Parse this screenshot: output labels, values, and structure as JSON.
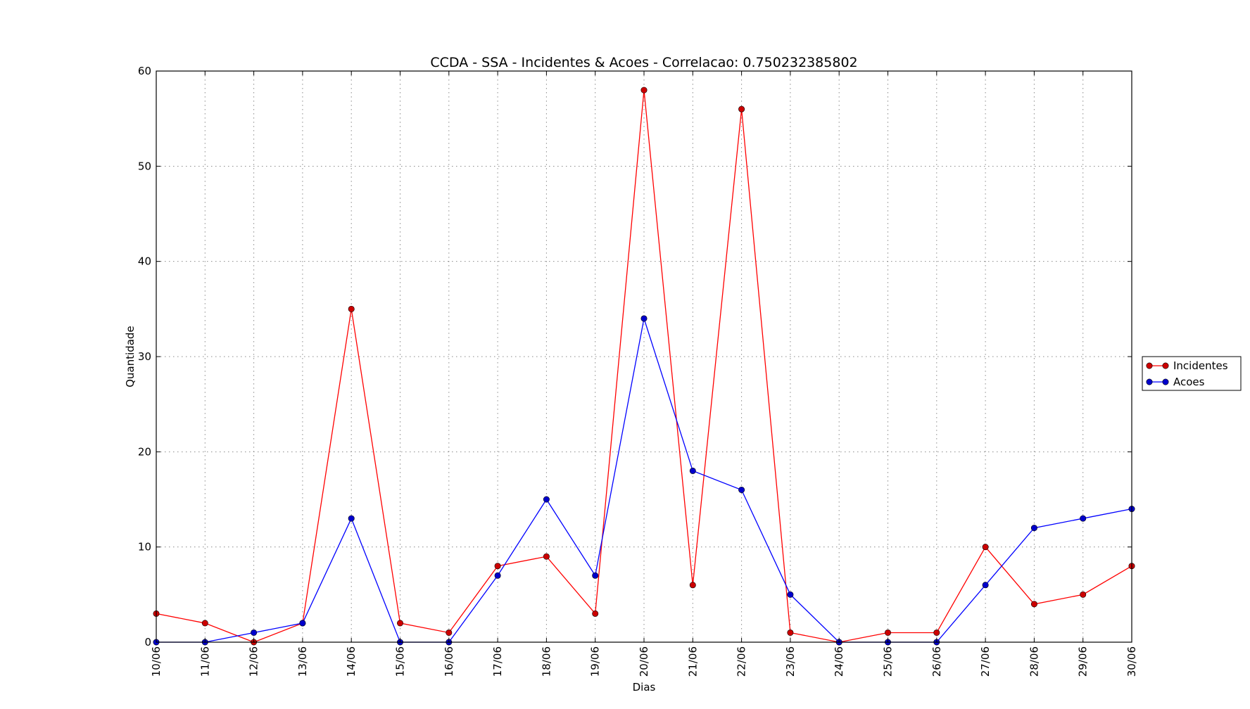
{
  "chart_data": {
    "type": "line",
    "title": "CCDA - SSA - Incidentes & Acoes - Correlacao: 0.750232385802",
    "xlabel": "Dias",
    "ylabel": "Quantidade",
    "categories": [
      "10/06",
      "11/06",
      "12/06",
      "13/06",
      "14/06",
      "15/06",
      "16/06",
      "17/06",
      "18/06",
      "19/06",
      "20/06",
      "21/06",
      "22/06",
      "23/06",
      "24/06",
      "25/06",
      "26/06",
      "27/06",
      "28/06",
      "29/06",
      "30/06"
    ],
    "ylim": [
      0,
      60
    ],
    "yticks": [
      0,
      10,
      20,
      30,
      40,
      50,
      60
    ],
    "grid": true,
    "legend_position": "right, outside plot",
    "series": [
      {
        "name": "Incidentes",
        "color": "#ff0000",
        "marker_color": "#cc0000",
        "values": [
          3,
          2,
          0,
          2,
          35,
          2,
          1,
          8,
          9,
          3,
          58,
          6,
          56,
          1,
          0,
          1,
          1,
          10,
          4,
          5,
          8
        ]
      },
      {
        "name": "Acoes",
        "color": "#0000ff",
        "marker_color": "#0000cc",
        "values": [
          0,
          0,
          1,
          2,
          13,
          0,
          0,
          7,
          15,
          7,
          34,
          18,
          16,
          5,
          0,
          0,
          0,
          6,
          12,
          13,
          14
        ]
      }
    ]
  }
}
